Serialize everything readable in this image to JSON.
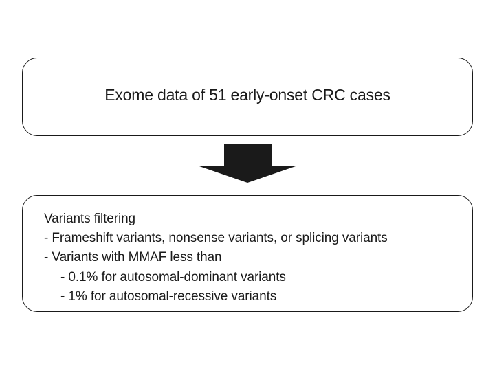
{
  "diagram": {
    "top_box": {
      "text": "Exome data of 51 early-onset CRC cases"
    },
    "arrow": {
      "direction": "down",
      "color": "#1a1a1a"
    },
    "bottom_box": {
      "lines": [
        "Variants filtering",
        "- Frameshift variants, nonsense variants, or splicing variants",
        "- Variants with MMAF less than",
        "- 0.1% for autosomal-dominant variants",
        "- 1% for autosomal-recessive variants"
      ]
    }
  }
}
